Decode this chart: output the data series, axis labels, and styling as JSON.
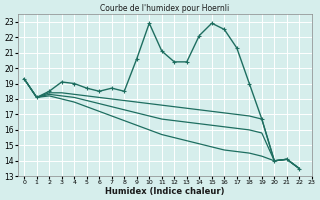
{
  "title": "Courbe de l'humidex pour Hoernli",
  "xlabel": "Humidex (Indice chaleur)",
  "xlim": [
    -0.5,
    23
  ],
  "ylim": [
    13,
    23.5
  ],
  "yticks": [
    13,
    14,
    15,
    16,
    17,
    18,
    19,
    20,
    21,
    22,
    23
  ],
  "xticks": [
    0,
    1,
    2,
    3,
    4,
    5,
    6,
    7,
    8,
    9,
    10,
    11,
    12,
    13,
    14,
    15,
    16,
    17,
    18,
    19,
    20,
    21,
    22,
    23
  ],
  "bg_color": "#d6eeec",
  "line_color": "#1e6e60",
  "grid_color": "#ffffff",
  "lines": [
    {
      "x": [
        0,
        1,
        2,
        3,
        4,
        5,
        6,
        7,
        8,
        9,
        10,
        11,
        12,
        13,
        14,
        15,
        16,
        17,
        18,
        19,
        20,
        21,
        22
      ],
      "y": [
        19.3,
        18.1,
        18.5,
        19.1,
        19.0,
        18.7,
        18.5,
        18.7,
        18.5,
        20.6,
        22.9,
        21.1,
        20.4,
        20.4,
        22.1,
        22.9,
        22.5,
        21.3,
        19.0,
        16.7,
        14.0,
        14.1,
        13.5
      ],
      "marker": true,
      "lw": 1.0
    },
    {
      "x": [
        0,
        1,
        2,
        3,
        4,
        5,
        6,
        7,
        8,
        9,
        10,
        11,
        12,
        13,
        14,
        15,
        16,
        17,
        18,
        19,
        20,
        21,
        22
      ],
      "y": [
        19.3,
        18.1,
        18.4,
        18.4,
        18.3,
        18.2,
        18.1,
        18.0,
        17.9,
        17.8,
        17.7,
        17.6,
        17.5,
        17.4,
        17.3,
        17.2,
        17.1,
        17.0,
        16.9,
        16.7,
        14.0,
        14.1,
        13.5
      ],
      "marker": false,
      "lw": 0.9
    },
    {
      "x": [
        0,
        1,
        2,
        3,
        4,
        5,
        6,
        7,
        8,
        9,
        10,
        11,
        12,
        13,
        14,
        15,
        16,
        17,
        18,
        19,
        20,
        21,
        22
      ],
      "y": [
        19.3,
        18.1,
        18.3,
        18.2,
        18.1,
        17.9,
        17.7,
        17.5,
        17.3,
        17.1,
        16.9,
        16.7,
        16.6,
        16.5,
        16.4,
        16.3,
        16.2,
        16.1,
        16.0,
        15.8,
        14.0,
        14.1,
        13.5
      ],
      "marker": false,
      "lw": 0.9
    },
    {
      "x": [
        0,
        1,
        2,
        3,
        4,
        5,
        6,
        7,
        8,
        9,
        10,
        11,
        12,
        13,
        14,
        15,
        16,
        17,
        18,
        19,
        20,
        21,
        22
      ],
      "y": [
        19.3,
        18.1,
        18.2,
        18.0,
        17.8,
        17.5,
        17.2,
        16.9,
        16.6,
        16.3,
        16.0,
        15.7,
        15.5,
        15.3,
        15.1,
        14.9,
        14.7,
        14.6,
        14.5,
        14.3,
        14.0,
        14.1,
        13.5
      ],
      "marker": false,
      "lw": 0.9
    }
  ]
}
